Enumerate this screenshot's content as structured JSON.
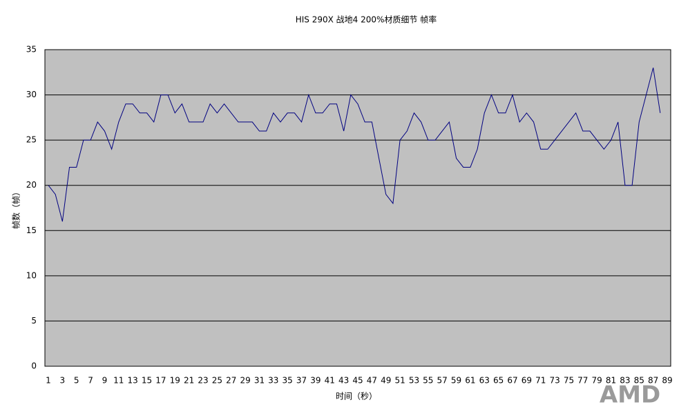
{
  "chart_data": {
    "type": "line",
    "title": "HIS 290X 战地4 200%材质细节 帧率",
    "x_label": "时间（秒）",
    "y_label": "帧数（帧）",
    "watermark": "AMD",
    "categories": [
      "1",
      null,
      "3",
      null,
      "5",
      null,
      "7",
      null,
      "9",
      null,
      "11",
      null,
      "13",
      null,
      "15",
      null,
      "17",
      null,
      "19",
      null,
      "21",
      null,
      "23",
      null,
      "25",
      null,
      "27",
      null,
      "29",
      null,
      "31",
      null,
      "33",
      null,
      "35",
      null,
      "37",
      null,
      "39",
      null,
      "41",
      null,
      "43",
      null,
      "45",
      null,
      "47",
      null,
      "49",
      null,
      "51",
      null,
      "53",
      null,
      "55",
      null,
      "57",
      null,
      "59",
      null,
      "61",
      null,
      "63",
      null,
      "65",
      null,
      "67",
      null,
      "69",
      null,
      "71",
      null,
      "73",
      null,
      "75",
      null,
      "77",
      null,
      "79",
      null,
      "81",
      null,
      "83",
      null,
      "85",
      null,
      "87",
      null,
      "89"
    ],
    "values": [
      20,
      19,
      16,
      22,
      22,
      25,
      25,
      27,
      26,
      24,
      27,
      29,
      29,
      28,
      28,
      27,
      30,
      30,
      28,
      29,
      27,
      27,
      27,
      29,
      28,
      29,
      28,
      27,
      27,
      27,
      26,
      26,
      28,
      27,
      28,
      28,
      27,
      30,
      28,
      28,
      29,
      29,
      26,
      30,
      29,
      27,
      27,
      23,
      19,
      18,
      25,
      26,
      28,
      27,
      25,
      25,
      26,
      27,
      23,
      22,
      22,
      24,
      28,
      30,
      28,
      28,
      30,
      27,
      28,
      27,
      24,
      24,
      25,
      26,
      27,
      28,
      26,
      26,
      25,
      24,
      25,
      27,
      20,
      20,
      27,
      30,
      33,
      28,
      null
    ],
    "color": "#000080",
    "ylim": [
      0,
      35
    ],
    "yticks": [
      0,
      5,
      10,
      15,
      20,
      25,
      30,
      35
    ],
    "grid": true
  }
}
